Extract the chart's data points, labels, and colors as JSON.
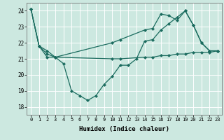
{
  "xlabel": "Humidex (Indice chaleur)",
  "xlim": [
    -0.5,
    23.5
  ],
  "ylim": [
    17.5,
    24.5
  ],
  "yticks": [
    18,
    19,
    20,
    21,
    22,
    23,
    24
  ],
  "xticks": [
    0,
    1,
    2,
    3,
    4,
    5,
    6,
    7,
    8,
    9,
    10,
    11,
    12,
    13,
    14,
    15,
    16,
    17,
    18,
    19,
    20,
    21,
    22,
    23
  ],
  "bg_color": "#cce8e0",
  "line_color": "#1a6b5e",
  "line1_x": [
    0,
    1,
    2,
    3,
    4,
    5,
    6,
    7,
    8,
    9,
    10,
    11,
    12,
    13,
    14,
    15,
    16,
    17,
    18,
    19,
    20,
    21,
    22,
    23
  ],
  "line1_y": [
    24.1,
    21.8,
    21.1,
    21.1,
    20.7,
    19.0,
    18.7,
    18.4,
    18.7,
    19.4,
    19.9,
    20.6,
    20.6,
    21.0,
    22.1,
    22.2,
    22.8,
    23.2,
    23.6,
    24.0,
    23.1,
    22.0,
    21.5,
    21.5
  ],
  "line2_x": [
    0,
    1,
    2,
    3,
    10,
    11,
    14,
    15,
    16,
    17,
    18,
    19,
    20,
    21,
    22,
    23
  ],
  "line2_y": [
    24.1,
    21.8,
    21.5,
    21.1,
    22.0,
    22.2,
    22.8,
    22.9,
    23.8,
    23.7,
    23.4,
    24.0,
    23.1,
    22.0,
    21.5,
    21.5
  ],
  "line3_x": [
    0,
    1,
    2,
    3,
    10,
    11,
    14,
    15,
    16,
    17,
    18,
    19,
    20,
    21,
    22,
    23
  ],
  "line3_y": [
    24.1,
    21.8,
    21.3,
    21.1,
    21.0,
    21.0,
    21.1,
    21.1,
    21.2,
    21.2,
    21.3,
    21.3,
    21.4,
    21.4,
    21.4,
    21.5
  ]
}
